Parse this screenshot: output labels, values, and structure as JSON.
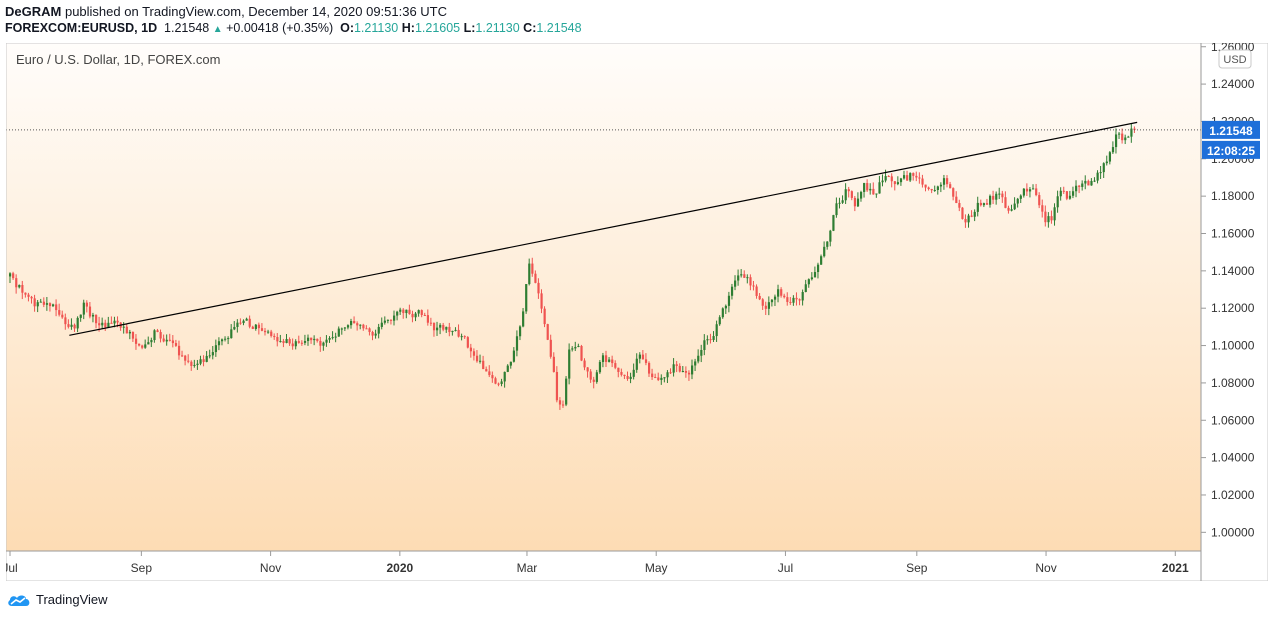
{
  "header": {
    "author": "DeGRAM",
    "published_text": "published on TradingView.com, December 14, 2020 09:51:36 UTC",
    "symbol": "FOREXCOM:EURUSD, 1D",
    "last": "1.21548",
    "change": "+0.00418 (+0.35%)",
    "o_label": "O:",
    "o_val": "1.21130",
    "h_label": "H:",
    "h_val": "1.21605",
    "l_label": "L:",
    "l_val": "1.21130",
    "c_label": "C:",
    "c_val": "1.21548"
  },
  "brand": {
    "name": "TradingView"
  },
  "chart_data": {
    "type": "candlestick",
    "title": "Euro / U.S. Dollar, 1D, FOREX.com",
    "currency_badge": "USD",
    "price_badge": "1.21548",
    "timer_badge": "12:08:25",
    "ylim": [
      0.99,
      1.262
    ],
    "y_ticks": [
      "1.00000",
      "1.02000",
      "1.04000",
      "1.06000",
      "1.08000",
      "1.10000",
      "1.12000",
      "1.14000",
      "1.16000",
      "1.18000",
      "1.20000",
      "1.22000",
      "1.24000",
      "1.26000"
    ],
    "x_ticks": [
      {
        "label": "Jul",
        "t": 0
      },
      {
        "label": "Sep",
        "t": 62
      },
      {
        "label": "Nov",
        "t": 123
      },
      {
        "label": "2020",
        "t": 184
      },
      {
        "label": "Mar",
        "t": 244
      },
      {
        "label": "May",
        "t": 305
      },
      {
        "label": "Jul",
        "t": 366
      },
      {
        "label": "Sep",
        "t": 428
      },
      {
        "label": "Nov",
        "t": 489
      },
      {
        "label": "2021",
        "t": 550
      }
    ],
    "t_range": [
      0,
      556
    ],
    "current_price": 1.21548,
    "trendline": [
      {
        "t": 28,
        "price": 1.1055
      },
      {
        "t": 532,
        "price": 1.2195
      }
    ],
    "anchors": [
      [
        0,
        1.137
      ],
      [
        8,
        1.126
      ],
      [
        12,
        1.122
      ],
      [
        18,
        1.124
      ],
      [
        25,
        1.114
      ],
      [
        30,
        1.108
      ],
      [
        35,
        1.122
      ],
      [
        42,
        1.11
      ],
      [
        50,
        1.112
      ],
      [
        57,
        1.107
      ],
      [
        62,
        1.097
      ],
      [
        68,
        1.107
      ],
      [
        75,
        1.102
      ],
      [
        82,
        1.094
      ],
      [
        88,
        1.089
      ],
      [
        95,
        1.097
      ],
      [
        102,
        1.104
      ],
      [
        110,
        1.114
      ],
      [
        118,
        1.108
      ],
      [
        125,
        1.104
      ],
      [
        132,
        1.101
      ],
      [
        140,
        1.104
      ],
      [
        147,
        1.1
      ],
      [
        155,
        1.108
      ],
      [
        162,
        1.112
      ],
      [
        170,
        1.106
      ],
      [
        177,
        1.112
      ],
      [
        184,
        1.12
      ],
      [
        188,
        1.117
      ],
      [
        194,
        1.117
      ],
      [
        200,
        1.11
      ],
      [
        207,
        1.109
      ],
      [
        214,
        1.104
      ],
      [
        220,
        1.094
      ],
      [
        226,
        1.083
      ],
      [
        231,
        1.079
      ],
      [
        236,
        1.09
      ],
      [
        241,
        1.11
      ],
      [
        245,
        1.145
      ],
      [
        249,
        1.131
      ],
      [
        252,
        1.113
      ],
      [
        256,
        1.09
      ],
      [
        258,
        1.072
      ],
      [
        261,
        1.068
      ],
      [
        264,
        1.097
      ],
      [
        268,
        1.099
      ],
      [
        272,
        1.085
      ],
      [
        276,
        1.082
      ],
      [
        280,
        1.094
      ],
      [
        284,
        1.091
      ],
      [
        288,
        1.084
      ],
      [
        293,
        1.083
      ],
      [
        297,
        1.095
      ],
      [
        303,
        1.084
      ],
      [
        308,
        1.083
      ],
      [
        314,
        1.09
      ],
      [
        320,
        1.083
      ],
      [
        326,
        1.099
      ],
      [
        332,
        1.106
      ],
      [
        337,
        1.12
      ],
      [
        342,
        1.135
      ],
      [
        347,
        1.138
      ],
      [
        352,
        1.128
      ],
      [
        357,
        1.12
      ],
      [
        362,
        1.129
      ],
      [
        368,
        1.123
      ],
      [
        373,
        1.126
      ],
      [
        378,
        1.136
      ],
      [
        384,
        1.15
      ],
      [
        390,
        1.175
      ],
      [
        395,
        1.183
      ],
      [
        399,
        1.175
      ],
      [
        403,
        1.187
      ],
      [
        408,
        1.18
      ],
      [
        413,
        1.193
      ],
      [
        418,
        1.187
      ],
      [
        423,
        1.19
      ],
      [
        427,
        1.192
      ],
      [
        431,
        1.186
      ],
      [
        436,
        1.182
      ],
      [
        441,
        1.19
      ],
      [
        446,
        1.178
      ],
      [
        451,
        1.166
      ],
      [
        456,
        1.174
      ],
      [
        462,
        1.178
      ],
      [
        467,
        1.18
      ],
      [
        472,
        1.172
      ],
      [
        477,
        1.181
      ],
      [
        482,
        1.186
      ],
      [
        486,
        1.175
      ],
      [
        489,
        1.167
      ],
      [
        492,
        1.168
      ],
      [
        496,
        1.185
      ],
      [
        500,
        1.178
      ],
      [
        505,
        1.187
      ],
      [
        510,
        1.187
      ],
      [
        515,
        1.195
      ],
      [
        519,
        1.203
      ],
      [
        522,
        1.213
      ],
      [
        526,
        1.209
      ],
      [
        529,
        1.214
      ],
      [
        531,
        1.2155
      ]
    ]
  }
}
